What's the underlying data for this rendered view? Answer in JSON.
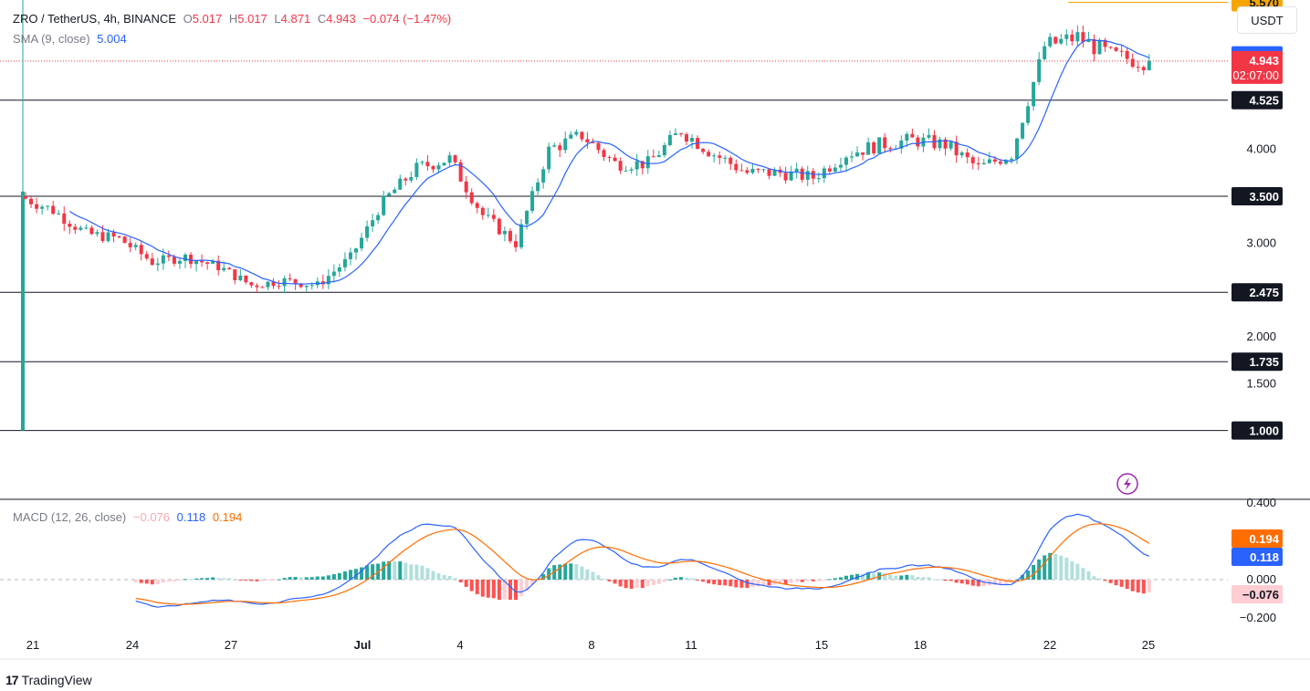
{
  "legend": {
    "symbol": "ZRO / TetherUS, 4h, BINANCE",
    "o_label": "O",
    "o_value": "5.017",
    "h_label": "H",
    "h_value": "5.017",
    "l_label": "L",
    "l_value": "4.871",
    "c_label": "C",
    "c_value": "4.943",
    "change": "−0.074 (−1.47%)",
    "sma_label": "SMA (9, close)",
    "sma_value": "5.004"
  },
  "macd_legend": {
    "label": "MACD (12, 26, close)",
    "hist_value": "−0.076",
    "macd_value": "0.118",
    "signal_value": "0.194"
  },
  "currency_button": "USDT",
  "brand": {
    "logo": "17",
    "name": "TradingView"
  },
  "colors": {
    "up": "#26a69a",
    "down": "#f23645",
    "sma": "#2962ff",
    "macd": "#2962ff",
    "signal": "#ff6d00",
    "hist_up_strong": "#26a69a",
    "hist_up_weak": "#b2dfdb",
    "hist_down_strong": "#ff5252",
    "hist_down_weak": "#ffcdd2",
    "level_line": "#131722"
  },
  "chart_data": [
    {
      "type": "candlestick",
      "title": "ZRO / TetherUS, 4h, BINANCE",
      "x_ticks": [
        "21",
        "24",
        "27",
        "Jul",
        "4",
        "8",
        "11",
        "15",
        "18",
        "22",
        "25"
      ],
      "y_ticks": [
        "1.500",
        "2.000",
        "3.000",
        "4.000"
      ],
      "ylim": [
        1.0,
        5.9
      ],
      "horizontal_levels": [
        5.57,
        4.525,
        3.5,
        2.475,
        1.735,
        1.0
      ],
      "price_labels": [
        {
          "value": "5.570",
          "kind": "high"
        },
        {
          "value": "5.004",
          "kind": "sma"
        },
        {
          "value": "4.943",
          "kind": "last",
          "countdown": "02:07:00"
        },
        {
          "value": "4.525",
          "kind": "level"
        },
        {
          "value": "3.500",
          "kind": "level"
        },
        {
          "value": "2.475",
          "kind": "level"
        },
        {
          "value": "1.735",
          "kind": "level"
        },
        {
          "value": "1.000",
          "kind": "level"
        }
      ],
      "daily_closes": [
        {
          "day": "Jun 20",
          "close": 3.5
        },
        {
          "day": "Jun 21",
          "close": 3.35
        },
        {
          "day": "Jun 22",
          "close": 3.1
        },
        {
          "day": "Jun 23",
          "close": 3.05
        },
        {
          "day": "Jun 24",
          "close": 2.8
        },
        {
          "day": "Jun 25",
          "close": 2.85
        },
        {
          "day": "Jun 26",
          "close": 2.75
        },
        {
          "day": "Jun 27",
          "close": 2.55
        },
        {
          "day": "Jun 28",
          "close": 2.6
        },
        {
          "day": "Jun 29",
          "close": 2.55
        },
        {
          "day": "Jun 30",
          "close": 2.85
        },
        {
          "day": "Jul 1",
          "close": 3.45
        },
        {
          "day": "Jul 2",
          "close": 3.8
        },
        {
          "day": "Jul 3",
          "close": 3.9
        },
        {
          "day": "Jul 4",
          "close": 3.3
        },
        {
          "day": "Jul 5",
          "close": 3.0
        },
        {
          "day": "Jul 6",
          "close": 4.0
        },
        {
          "day": "Jul 7",
          "close": 4.15
        },
        {
          "day": "Jul 8",
          "close": 3.85
        },
        {
          "day": "Jul 9",
          "close": 3.85
        },
        {
          "day": "Jul 10",
          "close": 4.2
        },
        {
          "day": "Jul 11",
          "close": 3.95
        },
        {
          "day": "Jul 12",
          "close": 3.75
        },
        {
          "day": "Jul 13",
          "close": 3.75
        },
        {
          "day": "Jul 14",
          "close": 3.7
        },
        {
          "day": "Jul 15",
          "close": 3.95
        },
        {
          "day": "Jul 16",
          "close": 4.05
        },
        {
          "day": "Jul 17",
          "close": 4.1
        },
        {
          "day": "Jul 18",
          "close": 4.05
        },
        {
          "day": "Jul 19",
          "close": 3.8
        },
        {
          "day": "Jul 20",
          "close": 3.95
        },
        {
          "day": "Jul 21",
          "close": 5.1
        },
        {
          "day": "Jul 22",
          "close": 5.2
        },
        {
          "day": "Jul 23",
          "close": 5.0
        },
        {
          "day": "Jul 24",
          "close": 4.943
        }
      ]
    },
    {
      "type": "line",
      "title": "MACD (12, 26, close)",
      "y_ticks": [
        "−0.200",
        "0.000",
        "0.400"
      ],
      "ylim": [
        -0.26,
        0.44
      ],
      "series": [
        {
          "name": "MACD",
          "last": 0.118
        },
        {
          "name": "Signal",
          "last": 0.194
        },
        {
          "name": "Histogram",
          "last": -0.076
        }
      ],
      "price_labels": [
        "0.194",
        "0.118",
        "-0.076"
      ]
    }
  ]
}
